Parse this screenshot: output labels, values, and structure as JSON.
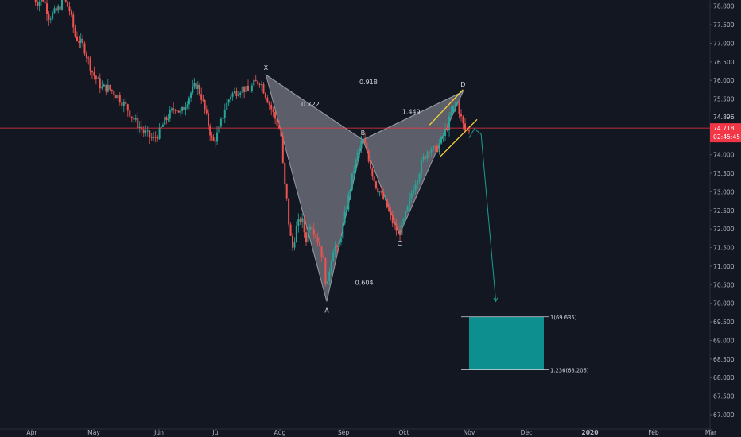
{
  "chart_data": {
    "type": "candlestick",
    "instrument_note": "",
    "x_axis": {
      "labels": [
        "Apr",
        "May",
        "Jun",
        "Jul",
        "Aug",
        "Sep",
        "Oct",
        "Nov",
        "Dec",
        "2020",
        "Feb",
        "Mar"
      ],
      "bold": [
        "2020"
      ]
    },
    "y_axis": {
      "ticks": [
        "67.000",
        "67.500",
        "68.000",
        "68.500",
        "69.000",
        "69.500",
        "70.000",
        "70.500",
        "71.000",
        "71.500",
        "72.000",
        "72.500",
        "73.000",
        "73.500",
        "74.000",
        "74.500",
        "75.000",
        "75.500",
        "76.000",
        "76.500",
        "77.000",
        "77.500",
        "78.000"
      ],
      "ylim": [
        66.85,
        78.1
      ],
      "scale": "linear"
    },
    "current_price": {
      "value": 74.718,
      "label": "74.718",
      "countdown": "02:45:45",
      "color": "#f23645"
    },
    "last_price_label": "74.896",
    "price_path": [
      {
        "t": 0.0,
        "p": 78.3
      },
      {
        "t": 0.04,
        "p": 78.1
      },
      {
        "t": 0.08,
        "p": 78.2
      },
      {
        "t": 0.12,
        "p": 77.7
      },
      {
        "t": 0.18,
        "p": 77.9
      },
      {
        "t": 0.22,
        "p": 78.2
      },
      {
        "t": 0.26,
        "p": 77.9
      },
      {
        "t": 0.3,
        "p": 77.2
      },
      {
        "t": 0.36,
        "p": 76.9
      },
      {
        "t": 0.42,
        "p": 76.2
      },
      {
        "t": 0.48,
        "p": 75.8
      },
      {
        "t": 0.52,
        "p": 75.8
      },
      {
        "t": 0.58,
        "p": 75.6
      },
      {
        "t": 0.64,
        "p": 75.3
      },
      {
        "t": 0.7,
        "p": 74.9
      },
      {
        "t": 0.76,
        "p": 74.6
      },
      {
        "t": 0.82,
        "p": 74.4
      },
      {
        "t": 0.86,
        "p": 74.6
      },
      {
        "t": 0.9,
        "p": 74.9
      },
      {
        "t": 0.94,
        "p": 75.1
      },
      {
        "t": 0.98,
        "p": 75.3
      },
      {
        "t": 1.02,
        "p": 75.1
      },
      {
        "t": 1.06,
        "p": 75.4
      },
      {
        "t": 1.1,
        "p": 75.7
      },
      {
        "t": 1.14,
        "p": 75.9
      },
      {
        "t": 1.18,
        "p": 75.5
      },
      {
        "t": 1.22,
        "p": 74.9
      },
      {
        "t": 1.26,
        "p": 74.3
      },
      {
        "t": 1.3,
        "p": 74.6
      },
      {
        "t": 1.34,
        "p": 75.2
      },
      {
        "t": 1.38,
        "p": 75.6
      },
      {
        "t": 1.42,
        "p": 75.7
      },
      {
        "t": 1.46,
        "p": 75.8
      },
      {
        "t": 1.5,
        "p": 75.7
      },
      {
        "t": 1.54,
        "p": 75.9
      },
      {
        "t": 1.58,
        "p": 76.0
      },
      {
        "t": 1.62,
        "p": 75.6
      },
      {
        "t": 1.66,
        "p": 75.2
      },
      {
        "t": 1.7,
        "p": 74.8
      },
      {
        "t": 1.72,
        "p": 74.6
      },
      {
        "t": 1.74,
        "p": 73.4
      },
      {
        "t": 1.76,
        "p": 72.8
      },
      {
        "t": 1.78,
        "p": 71.9
      },
      {
        "t": 1.8,
        "p": 71.5
      },
      {
        "t": 1.83,
        "p": 72.1
      },
      {
        "t": 1.86,
        "p": 72.3
      },
      {
        "t": 1.89,
        "p": 71.7
      },
      {
        "t": 1.92,
        "p": 72.2
      },
      {
        "t": 1.95,
        "p": 71.9
      },
      {
        "t": 1.98,
        "p": 71.6
      },
      {
        "t": 2.01,
        "p": 71.1
      },
      {
        "t": 2.03,
        "p": 70.3
      },
      {
        "t": 2.05,
        "p": 71.0
      },
      {
        "t": 2.08,
        "p": 71.6
      },
      {
        "t": 2.1,
        "p": 71.4
      },
      {
        "t": 2.13,
        "p": 71.9
      },
      {
        "t": 2.17,
        "p": 72.7
      },
      {
        "t": 2.21,
        "p": 73.5
      },
      {
        "t": 2.25,
        "p": 74.1
      },
      {
        "t": 2.28,
        "p": 74.4
      },
      {
        "t": 2.31,
        "p": 74.1
      },
      {
        "t": 2.34,
        "p": 73.6
      },
      {
        "t": 2.37,
        "p": 73.2
      },
      {
        "t": 2.4,
        "p": 73.0
      },
      {
        "t": 2.44,
        "p": 72.7
      },
      {
        "t": 2.48,
        "p": 72.3
      },
      {
        "t": 2.51,
        "p": 72.0
      },
      {
        "t": 2.54,
        "p": 71.9
      },
      {
        "t": 2.57,
        "p": 72.2
      },
      {
        "t": 2.6,
        "p": 72.6
      },
      {
        "t": 2.63,
        "p": 73.1
      },
      {
        "t": 2.66,
        "p": 73.4
      },
      {
        "t": 2.7,
        "p": 73.9
      },
      {
        "t": 2.74,
        "p": 74.2
      },
      {
        "t": 2.78,
        "p": 74.1
      },
      {
        "t": 2.82,
        "p": 74.4
      },
      {
        "t": 2.86,
        "p": 74.8
      },
      {
        "t": 2.89,
        "p": 75.2
      },
      {
        "t": 2.92,
        "p": 75.4
      },
      {
        "t": 2.94,
        "p": 75.1
      },
      {
        "t": 2.96,
        "p": 74.8
      },
      {
        "t": 2.98,
        "p": 74.6
      },
      {
        "t": 3.0,
        "p": 74.7
      }
    ],
    "harmonic_pattern": {
      "points": [
        {
          "label": "X",
          "t": 1.62,
          "p": 76.15
        },
        {
          "label": "A",
          "t": 2.03,
          "p": 70.05
        },
        {
          "label": "B",
          "t": 2.28,
          "p": 74.4
        },
        {
          "label": "C",
          "t": 2.54,
          "p": 71.85
        },
        {
          "label": "D",
          "t": 2.96,
          "p": 75.7
        }
      ],
      "ratios": [
        {
          "label": "0.722",
          "t": 1.92,
          "p": 75.3
        },
        {
          "label": "0.918",
          "t": 2.32,
          "p": 75.9
        },
        {
          "label": "1.449",
          "t": 2.62,
          "p": 75.1
        },
        {
          "label": "0.604",
          "t": 2.29,
          "p": 70.5
        }
      ],
      "fill": "#787b86"
    },
    "channel": {
      "upper": [
        {
          "t": 2.74,
          "p": 74.8
        },
        {
          "t": 2.96,
          "p": 75.75
        }
      ],
      "lower": [
        {
          "t": 2.81,
          "p": 73.95
        },
        {
          "t": 3.06,
          "p": 74.95
        }
      ],
      "color": "#f2d235"
    },
    "projection": {
      "path": [
        {
          "t": 3.0,
          "p": 74.45
        },
        {
          "t": 3.04,
          "p": 74.7
        },
        {
          "t": 3.09,
          "p": 74.55
        },
        {
          "t": 3.2,
          "p": 70.05
        }
      ],
      "color": "#1b9e8f"
    },
    "target_zone": {
      "top": 69.635,
      "bottom": 68.205,
      "top_label": "1(69.635)",
      "bottom_label": "1.236(68.205)",
      "color": "#0e8f8f"
    }
  }
}
